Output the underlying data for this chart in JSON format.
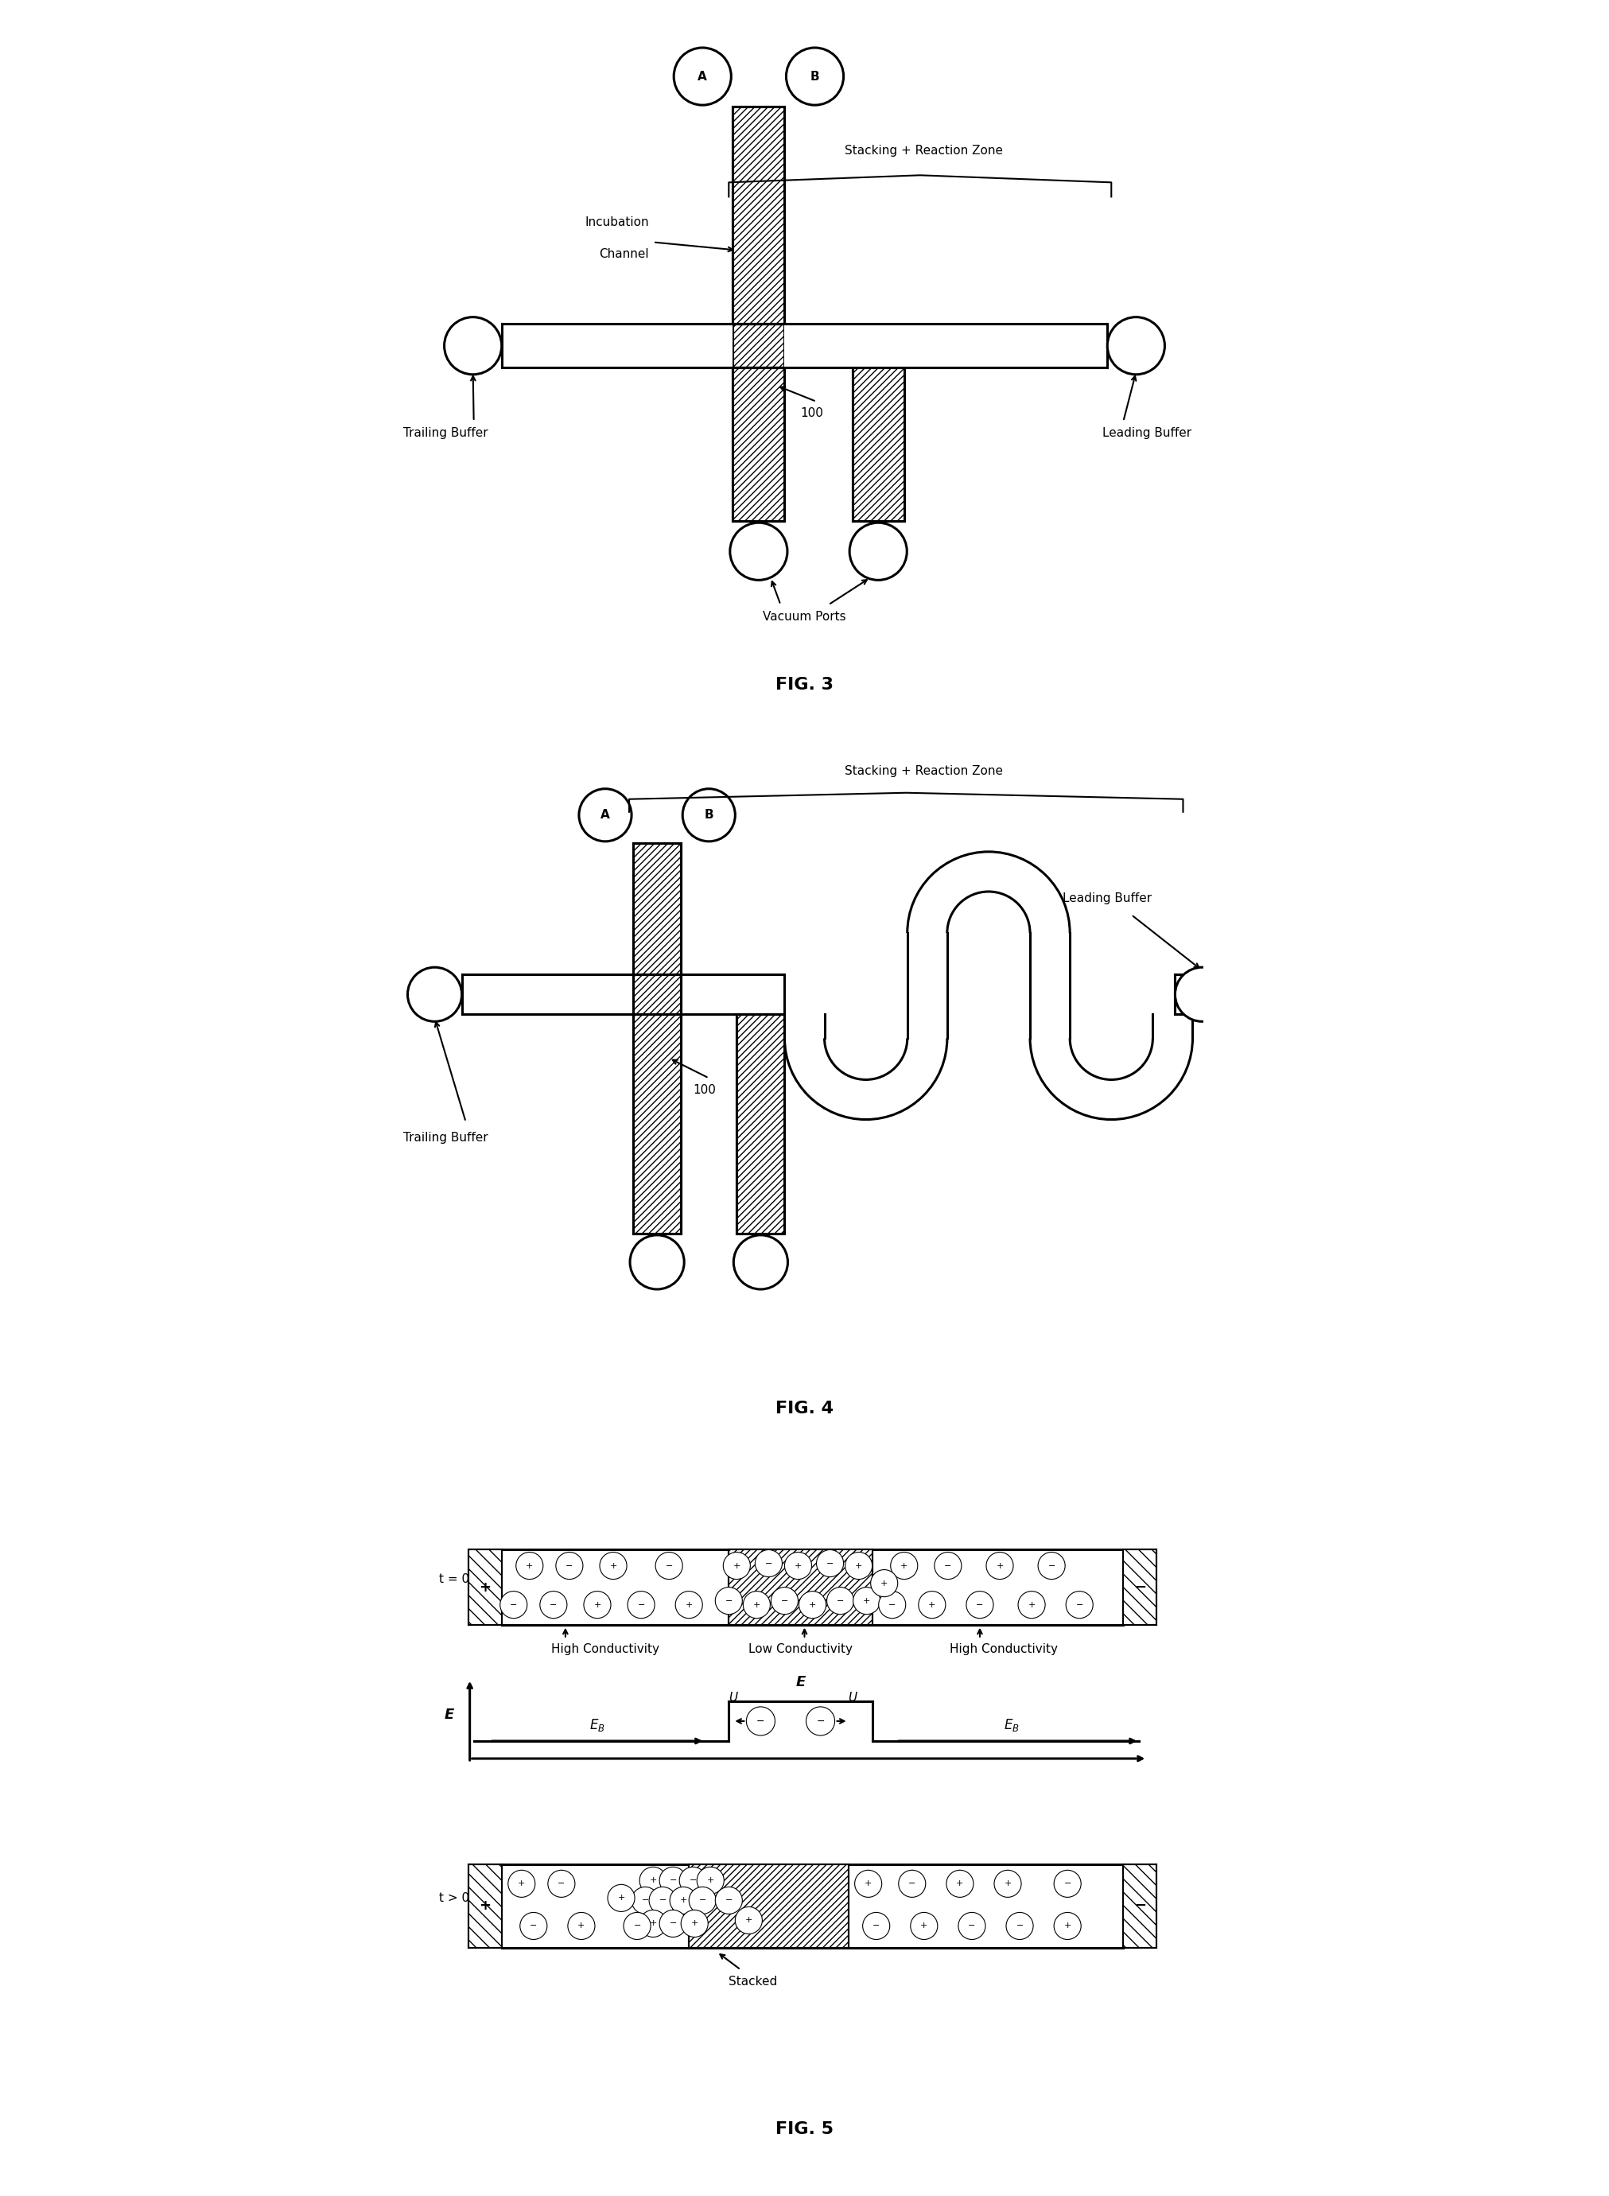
{
  "fig3_title": "FIG. 3",
  "fig4_title": "FIG. 4",
  "fig5_title": "FIG. 5",
  "background_color": "#ffffff",
  "lw_main": 2.2,
  "lw_thin": 1.5,
  "font_size_label": 11,
  "font_size_fignum": 16,
  "font_size_ion": 9,
  "font_size_eq": 12
}
